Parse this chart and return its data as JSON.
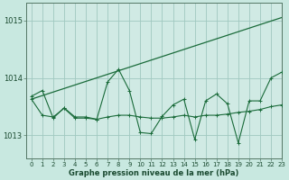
{
  "title": "Graphe pression niveau de la mer (hPa)",
  "background_color": "#c8e8e0",
  "plot_bg_color": "#d0eae4",
  "grid_color": "#a0c8c0",
  "line_color": "#1a6b3a",
  "xlim": [
    -0.5,
    23
  ],
  "ylim": [
    1012.6,
    1015.3
  ],
  "yticks": [
    1013,
    1014,
    1015
  ],
  "xticks": [
    0,
    1,
    2,
    3,
    4,
    5,
    6,
    7,
    8,
    9,
    10,
    11,
    12,
    13,
    14,
    15,
    16,
    17,
    18,
    19,
    20,
    21,
    22,
    23
  ],
  "trend_x": [
    0,
    23
  ],
  "trend_y": [
    1013.63,
    1015.05
  ],
  "s1_x": [
    0,
    1,
    2,
    3,
    4,
    5,
    6,
    7,
    8,
    9,
    10,
    11,
    12,
    13,
    14,
    15,
    16,
    17,
    18,
    19,
    20,
    21,
    22,
    23
  ],
  "s1_y": [
    1013.68,
    1013.78,
    1013.3,
    1013.48,
    1013.32,
    1013.32,
    1013.28,
    1013.93,
    1014.15,
    1013.78,
    1013.05,
    1013.03,
    1013.33,
    1013.53,
    1013.63,
    1012.93,
    1013.6,
    1013.72,
    1013.55,
    1012.87,
    1013.6,
    1013.6,
    1014.0,
    1014.1
  ],
  "s2_x": [
    0,
    1,
    2,
    3,
    4,
    5,
    6,
    7,
    8,
    9,
    10,
    11,
    12,
    13,
    14,
    15,
    16,
    17,
    18,
    19,
    20,
    21,
    22,
    23
  ],
  "s2_y": [
    1013.63,
    1013.35,
    1013.32,
    1013.47,
    1013.3,
    1013.3,
    1013.28,
    1013.32,
    1013.35,
    1013.35,
    1013.32,
    1013.3,
    1013.3,
    1013.32,
    1013.35,
    1013.32,
    1013.35,
    1013.35,
    1013.37,
    1013.4,
    1013.42,
    1013.45,
    1013.5,
    1013.53
  ],
  "xlabel_fontsize": 6.0,
  "ytick_fontsize": 6.0,
  "xtick_fontsize": 5.0
}
